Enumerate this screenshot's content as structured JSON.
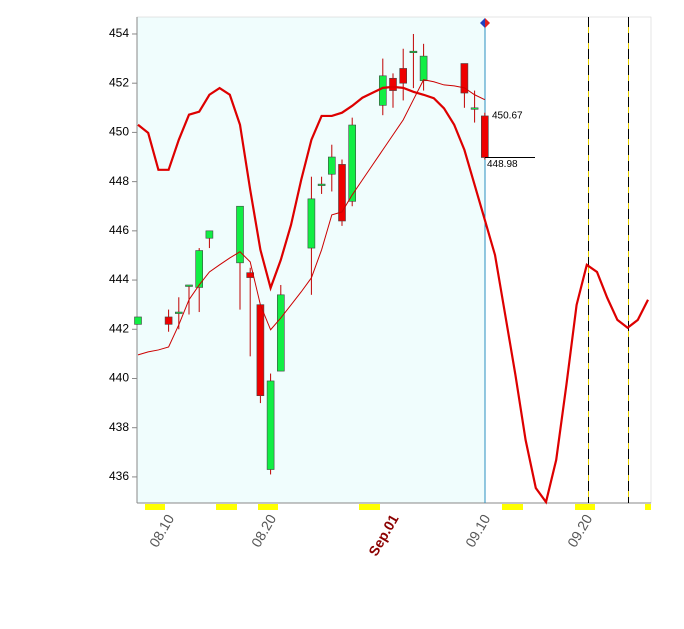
{
  "chart_data": {
    "type": "candlestick",
    "categories": [
      null,
      null,
      null,
      "08.10",
      null,
      null,
      null,
      null,
      null,
      null,
      null,
      null,
      null,
      "08.20",
      null,
      null,
      null,
      null,
      null,
      null,
      null,
      null,
      null,
      null,
      null,
      "Sep.01",
      null,
      null,
      null,
      null,
      null,
      null,
      null,
      null,
      "09.10",
      null,
      null,
      null,
      null,
      null,
      null,
      null,
      null,
      null,
      "09.20",
      null,
      null,
      null,
      null,
      null,
      null
    ],
    "highlight_category": 25,
    "open": [
      442.2,
      null,
      null,
      442.5,
      442.7,
      443.8,
      443.7,
      445.7,
      null,
      null,
      444.7,
      444.3,
      443.0,
      436.3,
      440.3,
      null,
      null,
      445.3,
      447.9,
      448.3,
      448.7,
      447.2,
      null,
      null,
      451.1,
      452.2,
      452.6,
      453.3,
      452.1,
      null,
      null,
      null,
      452.8,
      451.0,
      450.67,
      null,
      null,
      null,
      null,
      null,
      null,
      null,
      null,
      null,
      null,
      null,
      null,
      null,
      null,
      null,
      null
    ],
    "high": [
      442.5,
      null,
      null,
      442.8,
      443.3,
      443.8,
      445.3,
      446.0,
      null,
      null,
      447.0,
      444.5,
      443.0,
      440.2,
      443.8,
      null,
      null,
      448.2,
      448.2,
      449.5,
      448.9,
      450.6,
      null,
      null,
      453.0,
      452.4,
      453.4,
      454.0,
      453.6,
      null,
      null,
      null,
      452.8,
      451.7,
      450.8,
      null,
      null,
      null,
      null,
      null,
      null,
      null,
      null,
      null,
      null,
      null,
      null,
      null,
      null,
      null,
      null
    ],
    "low": [
      442.2,
      null,
      null,
      441.9,
      442.0,
      442.6,
      442.7,
      445.3,
      null,
      null,
      442.8,
      440.9,
      439.0,
      436.1,
      440.3,
      null,
      null,
      443.4,
      447.5,
      447.6,
      446.2,
      447.0,
      null,
      null,
      450.7,
      451.0,
      451.3,
      451.8,
      451.7,
      null,
      null,
      null,
      451.0,
      450.4,
      448.9,
      null,
      null,
      null,
      null,
      null,
      null,
      null,
      null,
      null,
      null,
      null,
      null,
      null,
      null,
      null,
      null
    ],
    "close": [
      442.5,
      null,
      null,
      442.2,
      442.7,
      443.8,
      445.2,
      446.0,
      null,
      null,
      447.0,
      444.1,
      439.3,
      439.9,
      443.4,
      null,
      null,
      447.3,
      447.9,
      449.0,
      446.4,
      450.3,
      null,
      null,
      452.3,
      451.7,
      452.0,
      453.3,
      453.1,
      null,
      null,
      null,
      451.6,
      451.0,
      448.98,
      null,
      null,
      null,
      null,
      null,
      null,
      null,
      null,
      null,
      null,
      null,
      null,
      null,
      null,
      null,
      null
    ],
    "up_color": "#11ee44",
    "down_color": "#ee0000",
    "lines": [
      {
        "color": "#dd0000",
        "width": 2.2,
        "values": [
          450.31,
          449.98,
          448.48,
          448.48,
          449.7,
          450.72,
          450.84,
          451.53,
          451.8,
          451.53,
          450.31,
          447.67,
          445.23,
          443.68,
          444.82,
          446.24,
          448.07,
          449.7,
          450.67,
          450.67,
          450.8,
          451.08,
          451.41,
          451.61,
          451.81,
          451.85,
          451.81,
          451.65,
          451.53,
          451.39,
          450.98,
          450.31,
          449.29,
          447.87,
          446.45,
          445.02,
          442.59,
          440.15,
          437.5,
          435.55,
          434.98,
          436.69,
          439.74,
          442.99,
          444.62,
          444.33,
          443.28,
          442.38,
          442.06,
          442.38,
          443.2
        ]
      },
      {
        "color": "#cc0000",
        "width": 1,
        "values": [
          440.96,
          441.08,
          441.16,
          441.28,
          442.18,
          443.2,
          443.8,
          444.33,
          444.62,
          444.9,
          445.15,
          444.74,
          442.99,
          441.98,
          442.46,
          442.99,
          443.52,
          444.09,
          445.23,
          446.65,
          446.77,
          447.46,
          448.07,
          448.68,
          449.29,
          449.9,
          450.51,
          451.33,
          452.14,
          452.06,
          451.93,
          451.89,
          451.81,
          451.53,
          451.33,
          null,
          null,
          null,
          null,
          null,
          null,
          null,
          null,
          null,
          null,
          null,
          null,
          null,
          null,
          null,
          null
        ]
      }
    ],
    "price_labels": [
      {
        "value": 450.67,
        "label": "450.67"
      },
      {
        "value": 448.98,
        "label": "448.98"
      }
    ],
    "ylim": [
      434.94,
      454.69
    ],
    "yticks": [
      436,
      438,
      440,
      442,
      444,
      446,
      448,
      450,
      452,
      454
    ]
  }
}
